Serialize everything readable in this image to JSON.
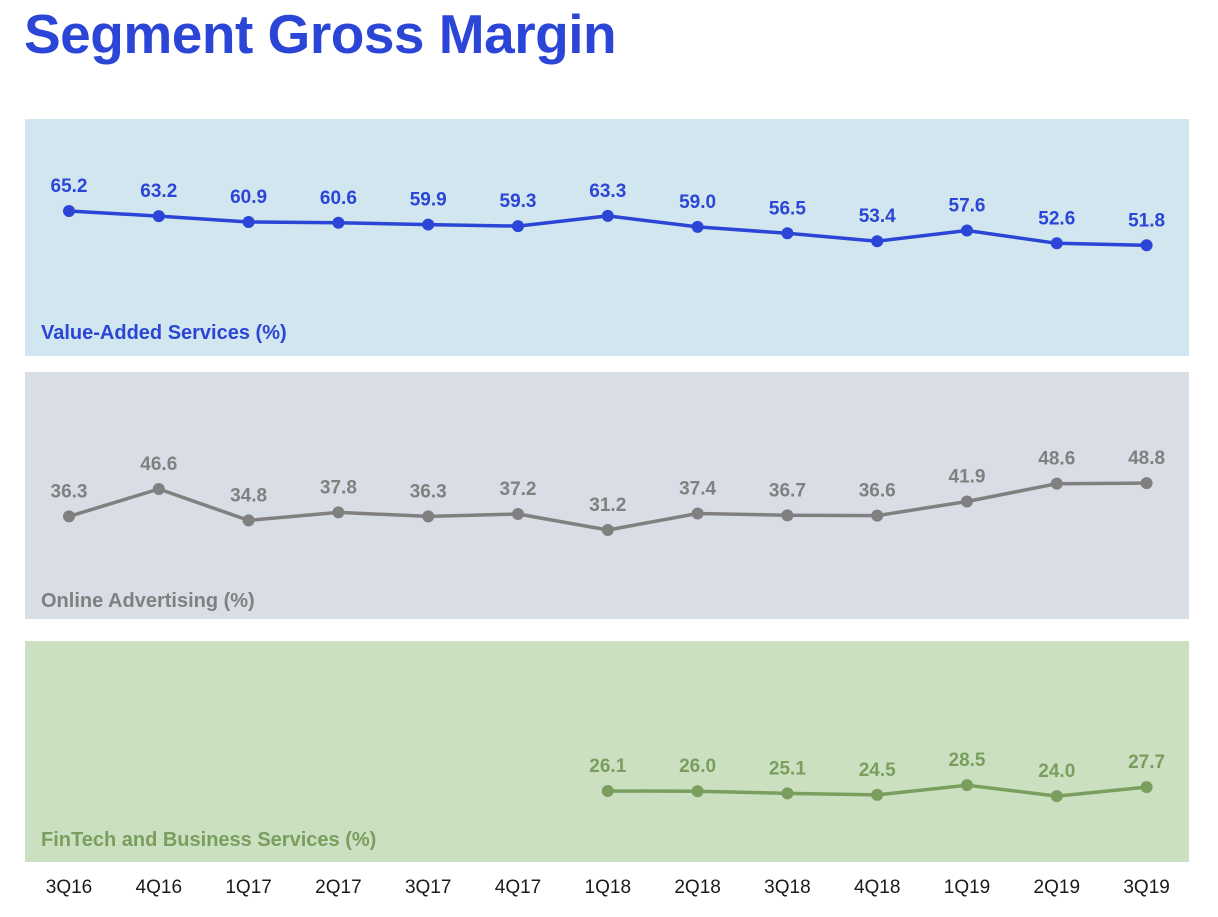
{
  "title": "Segment Gross Margin",
  "chart_data": {
    "type": "line",
    "categories": [
      "3Q16",
      "4Q16",
      "1Q17",
      "2Q17",
      "3Q17",
      "4Q17",
      "1Q18",
      "2Q18",
      "3Q18",
      "4Q18",
      "1Q19",
      "2Q19",
      "3Q19"
    ],
    "series": [
      {
        "name": "Value-Added Services (%)",
        "values": [
          65.2,
          63.2,
          60.9,
          60.6,
          59.9,
          59.3,
          63.3,
          59.0,
          56.5,
          53.4,
          57.6,
          52.6,
          51.8
        ],
        "labels": [
          "65.2",
          "63.2",
          "60.9",
          "60.6",
          "59.9",
          "59.3",
          "63.3",
          "59.0",
          "56.5",
          "53.4",
          "57.6",
          "52.6",
          "51.8"
        ],
        "color": "#2b46d6",
        "panel_color": "#d1e6ee"
      },
      {
        "name": "Online Advertising (%)",
        "values": [
          36.3,
          46.6,
          34.8,
          37.8,
          36.3,
          37.2,
          31.2,
          37.4,
          36.7,
          36.6,
          41.9,
          48.6,
          48.8
        ],
        "labels": [
          "36.3",
          "46.6",
          "34.8",
          "37.8",
          "36.3",
          "37.2",
          "31.2",
          "37.4",
          "36.7",
          "36.6",
          "41.9",
          "48.6",
          "48.8"
        ],
        "color": "#808080",
        "panel_color": "#d9dde5"
      },
      {
        "name": "FinTech and Business Services (%)",
        "values": [
          null,
          null,
          null,
          null,
          null,
          null,
          26.1,
          26.0,
          25.1,
          24.5,
          28.5,
          24.0,
          27.7
        ],
        "labels": [
          "",
          "",
          "",
          "",
          "",
          "",
          "26.1",
          "26.0",
          "25.1",
          "24.5",
          "28.5",
          "24.0",
          "27.7"
        ],
        "color": "#7a9e5e",
        "panel_color": "#cae0c0"
      }
    ],
    "grid": false,
    "legend": "none"
  }
}
